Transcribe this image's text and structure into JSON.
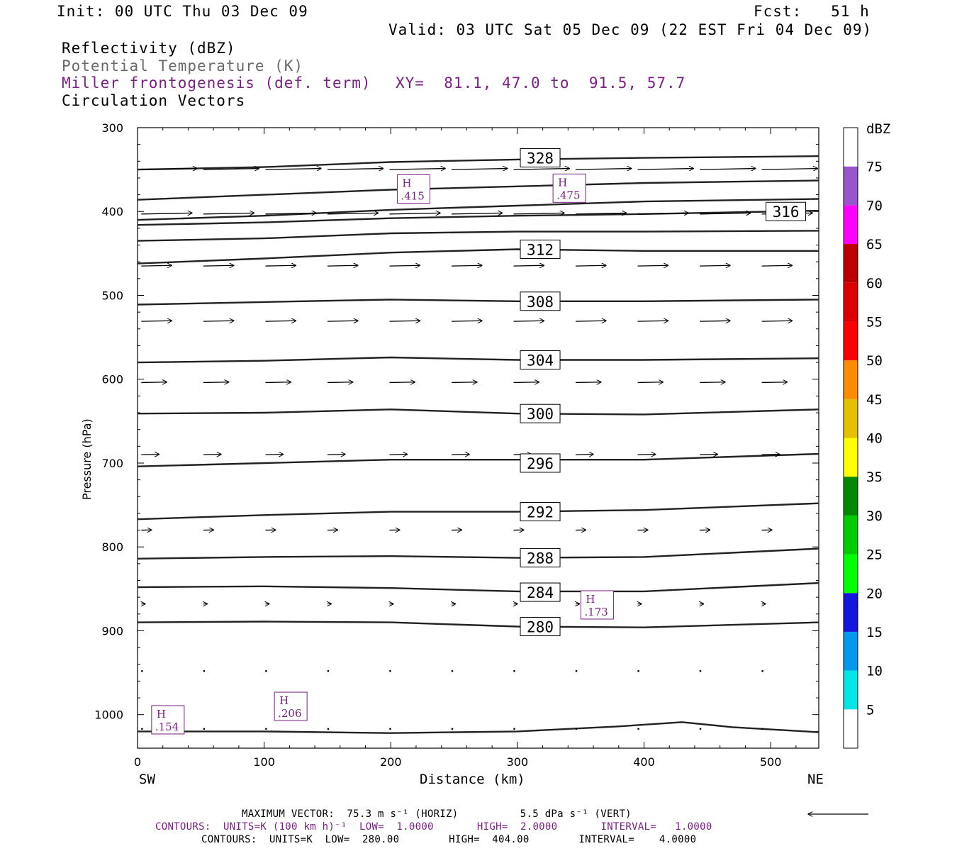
{
  "header": {
    "init": "Init: 00 UTC Thu 03 Dec 09",
    "fcst": "Fcst:   51 h",
    "valid": "Valid: 03 UTC Sat 05 Dec 09 (22 EST Fri 04 Dec 09)"
  },
  "fields": {
    "reflectivity": "Reflectivity (dBZ)",
    "theta": "Potential Temperature (K)",
    "miller": "Miller frontogenesis (def. term)",
    "xy": "XY=  81.1, 47.0 to  91.5, 57.7",
    "vectors": "Circulation Vectors"
  },
  "colors": {
    "purple": "#7a1f84",
    "contour": "#222222",
    "gray_text": "#6a6a6a"
  },
  "colorbar": {
    "unit": "dBZ",
    "levels": [
      "5",
      "10",
      "15",
      "20",
      "25",
      "30",
      "35",
      "40",
      "45",
      "50",
      "55",
      "60",
      "65",
      "70",
      "75"
    ],
    "colors": [
      "#00e5e5",
      "#0099ee",
      "#1515dd",
      "#00ff00",
      "#00cc00",
      "#008800",
      "#ffff00",
      "#e6c000",
      "#ff8c00",
      "#ff0000",
      "#dd0000",
      "#bb0000",
      "#ff00ff",
      "#9955cc",
      "#ffffff"
    ]
  },
  "footer": {
    "max_vector": "MAXIMUM VECTOR:  75.3 m s⁻¹ (HORIZ)          5.5 dPa s⁻¹ (VERT)",
    "contours_purple": "CONTOURS:  UNITS=K (100 km h)⁻¹  LOW=  1.0000       HIGH=  2.0000       INTERVAL=   1.0000",
    "contours_black": "CONTOURS:  UNITS=K  LOW=  280.00        HIGH=  404.00        INTERVAL=    4.0000"
  },
  "chart_data": {
    "type": "cross-section",
    "xlabel": "Distance (km)",
    "ylabel": "Pressure (hPa)",
    "xlim": [
      0,
      538
    ],
    "ylim": [
      300,
      1040
    ],
    "x_ticks": [
      0,
      100,
      200,
      300,
      400,
      500
    ],
    "y_ticks": [
      300,
      400,
      500,
      600,
      700,
      800,
      900,
      1000
    ],
    "x_end_labels": {
      "left": "SW",
      "right": "NE"
    },
    "theta_contours": [
      {
        "label": "",
        "points": [
          [
            0,
            350
          ],
          [
            100,
            347
          ],
          [
            200,
            341
          ],
          [
            300,
            338
          ],
          [
            400,
            336
          ],
          [
            538,
            334
          ]
        ]
      },
      {
        "label": "328",
        "label_x": 318,
        "label_p": 336,
        "points": [
          [
            0,
            336
          ],
          [
            538,
            334
          ]
        ],
        "hidden": true
      },
      {
        "label": "",
        "points": [
          [
            0,
            386
          ],
          [
            100,
            380
          ],
          [
            200,
            374
          ],
          [
            300,
            370
          ],
          [
            400,
            366
          ],
          [
            538,
            363
          ]
        ]
      },
      {
        "label": "",
        "points": [
          [
            0,
            410
          ],
          [
            100,
            405
          ],
          [
            200,
            398
          ],
          [
            300,
            393
          ],
          [
            400,
            388
          ],
          [
            538,
            385
          ]
        ]
      },
      {
        "label": "316",
        "label_x": 512,
        "label_p": 400,
        "points": [
          [
            0,
            416
          ],
          [
            100,
            413
          ],
          [
            200,
            408
          ],
          [
            300,
            405
          ],
          [
            400,
            403
          ],
          [
            538,
            399
          ]
        ]
      },
      {
        "label": "",
        "points": [
          [
            0,
            435
          ],
          [
            100,
            432
          ],
          [
            200,
            426
          ],
          [
            300,
            424
          ],
          [
            400,
            424
          ],
          [
            538,
            423
          ]
        ]
      },
      {
        "label": "312",
        "label_x": 318,
        "label_p": 445,
        "points": [
          [
            0,
            462
          ],
          [
            100,
            456
          ],
          [
            200,
            449
          ],
          [
            300,
            445
          ],
          [
            400,
            447
          ],
          [
            538,
            447
          ]
        ]
      },
      {
        "label": "308",
        "label_x": 318,
        "label_p": 507,
        "points": [
          [
            0,
            511
          ],
          [
            100,
            508
          ],
          [
            200,
            505
          ],
          [
            300,
            507
          ],
          [
            400,
            507
          ],
          [
            538,
            505
          ]
        ]
      },
      {
        "label": "304",
        "label_x": 318,
        "label_p": 577,
        "points": [
          [
            0,
            580
          ],
          [
            100,
            578
          ],
          [
            200,
            574
          ],
          [
            300,
            577
          ],
          [
            400,
            577
          ],
          [
            538,
            575
          ]
        ]
      },
      {
        "label": "300",
        "label_x": 318,
        "label_p": 641,
        "points": [
          [
            0,
            641
          ],
          [
            100,
            640
          ],
          [
            200,
            636
          ],
          [
            300,
            641
          ],
          [
            400,
            642
          ],
          [
            538,
            636
          ]
        ]
      },
      {
        "label": "296",
        "label_x": 318,
        "label_p": 700,
        "points": [
          [
            0,
            704
          ],
          [
            100,
            700
          ],
          [
            200,
            696
          ],
          [
            300,
            696
          ],
          [
            400,
            696
          ],
          [
            538,
            689
          ]
        ]
      },
      {
        "label": "292",
        "label_x": 318,
        "label_p": 758,
        "points": [
          [
            0,
            767
          ],
          [
            100,
            762
          ],
          [
            200,
            758
          ],
          [
            300,
            758
          ],
          [
            400,
            756
          ],
          [
            538,
            748
          ]
        ]
      },
      {
        "label": "288",
        "label_x": 318,
        "label_p": 813,
        "points": [
          [
            0,
            814
          ],
          [
            100,
            812
          ],
          [
            200,
            811
          ],
          [
            300,
            813
          ],
          [
            400,
            812
          ],
          [
            538,
            802
          ]
        ]
      },
      {
        "label": "284",
        "label_x": 318,
        "label_p": 854,
        "points": [
          [
            0,
            848
          ],
          [
            100,
            847
          ],
          [
            200,
            849
          ],
          [
            300,
            853
          ],
          [
            400,
            853
          ],
          [
            538,
            843
          ]
        ]
      },
      {
        "label": "280",
        "label_x": 318,
        "label_p": 895,
        "points": [
          [
            0,
            890
          ],
          [
            100,
            889
          ],
          [
            200,
            890
          ],
          [
            300,
            895
          ],
          [
            400,
            896
          ],
          [
            538,
            890
          ]
        ]
      },
      {
        "label": "",
        "points": [
          [
            0,
            1020
          ],
          [
            100,
            1020
          ],
          [
            200,
            1022
          ],
          [
            300,
            1020
          ],
          [
            380,
            1014
          ],
          [
            430,
            1009
          ],
          [
            470,
            1015
          ],
          [
            538,
            1021
          ]
        ]
      }
    ],
    "frontogenesis_maxima": [
      {
        "label": "H",
        "value": ".415",
        "x": 218,
        "p": 374
      },
      {
        "label": "H",
        "value": ".475",
        "x": 341,
        "p": 373
      },
      {
        "label": "H",
        "value": ".173",
        "x": 363,
        "p": 870
      },
      {
        "label": "H",
        "value": ".154",
        "x": 24,
        "p": 1007
      },
      {
        "label": "H",
        "value": ".206",
        "x": 121,
        "p": 991
      }
    ],
    "vector_rows": [
      {
        "p": 350,
        "len_km": 44
      },
      {
        "p": 403,
        "len_km": 40
      },
      {
        "p": 465,
        "len_km": 24
      },
      {
        "p": 531,
        "len_km": 24
      },
      {
        "p": 604,
        "len_km": 20
      },
      {
        "p": 690,
        "len_km": 14
      },
      {
        "p": 780,
        "len_km": 8
      },
      {
        "p": 868,
        "len_km": 3
      },
      {
        "p": 948,
        "len_km": 0.8
      },
      {
        "p": 1017,
        "len_km": 0.4
      }
    ],
    "vector_x": [
      0,
      49,
      98,
      147,
      196,
      245,
      294,
      343,
      392,
      441,
      490
    ]
  }
}
